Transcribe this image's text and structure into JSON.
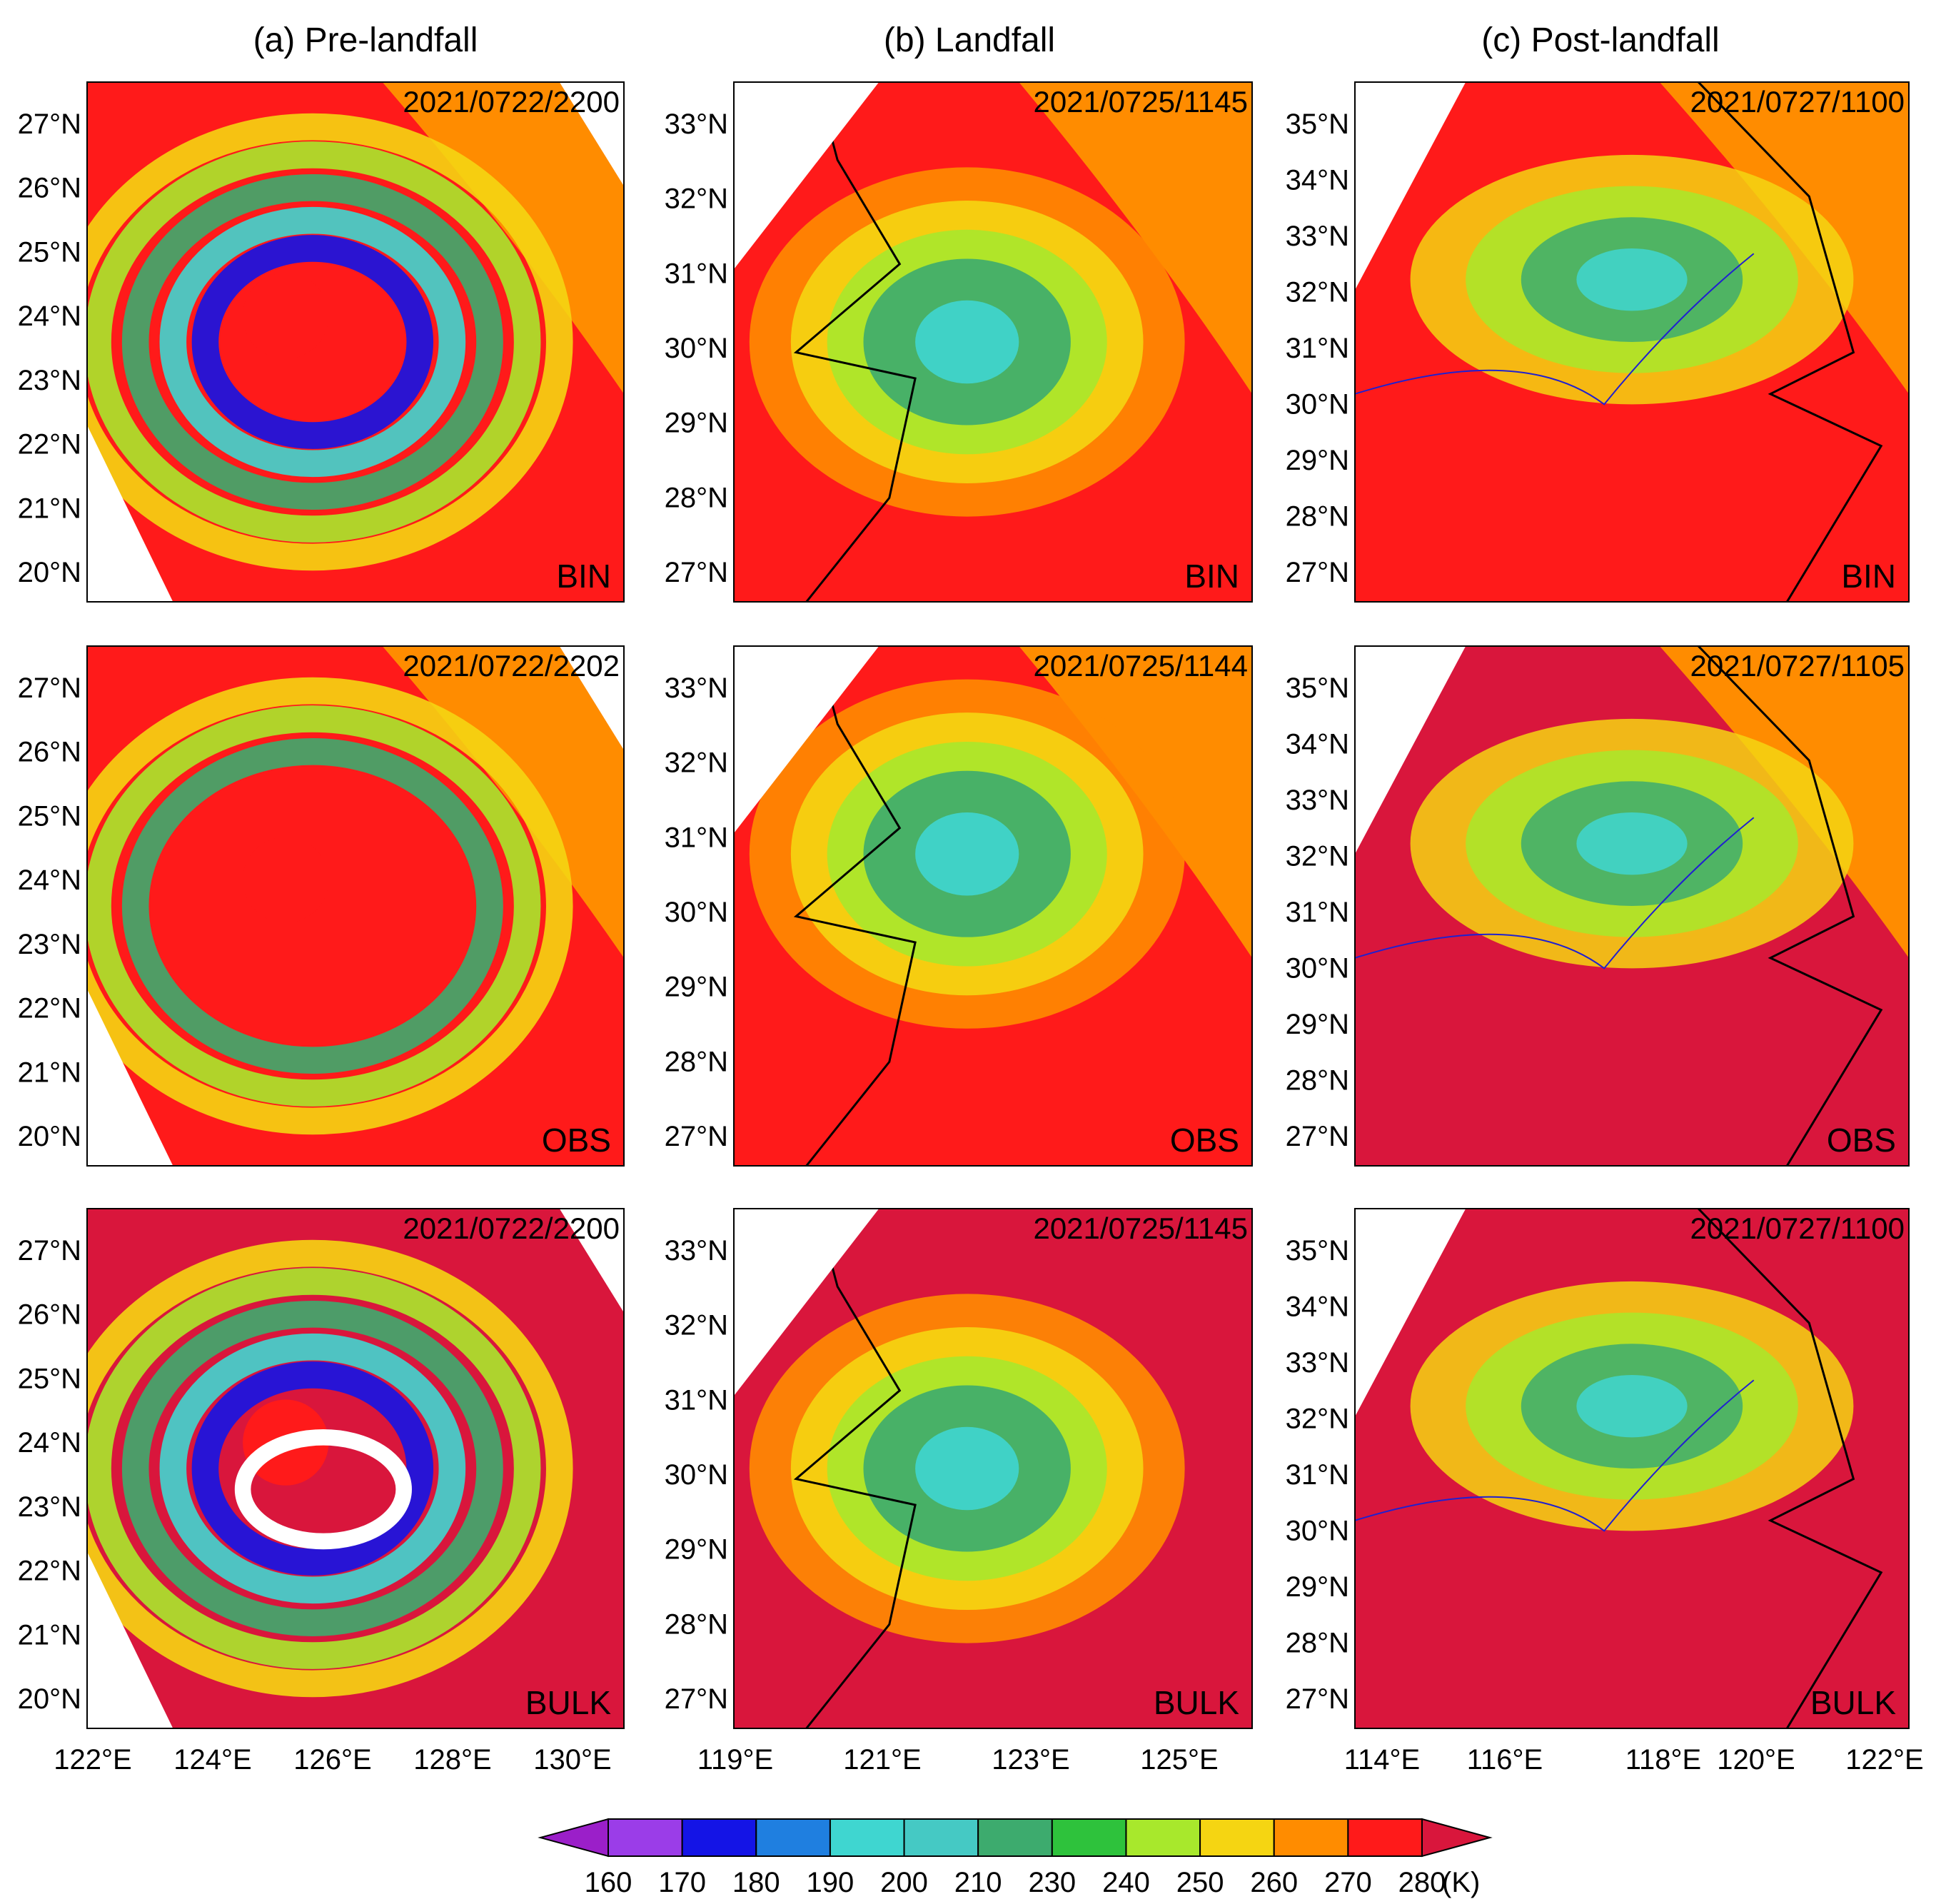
{
  "columns": [
    {
      "title": "(a) Pre-landfall",
      "lat_labels": [
        "27°N",
        "26°N",
        "25°N",
        "24°N",
        "23°N",
        "22°N",
        "21°N",
        "20°N"
      ],
      "lon_labels": [
        "122°E",
        "124°E",
        "126°E",
        "128°E",
        "130°E"
      ]
    },
    {
      "title": "(b) Landfall",
      "lat_labels": [
        "33°N",
        "32°N",
        "31°N",
        "30°N",
        "29°N",
        "28°N",
        "27°N"
      ],
      "lon_labels": [
        "119°E",
        "121°E",
        "123°E",
        "125°E"
      ]
    },
    {
      "title": "(c) Post-landfall",
      "lat_labels": [
        "35°N",
        "34°N",
        "33°N",
        "32°N",
        "31°N",
        "30°N",
        "29°N",
        "28°N",
        "27°N"
      ],
      "lon_labels": [
        "114°E",
        "116°E",
        "118°E",
        "120°E",
        "122°E"
      ]
    }
  ],
  "panels": [
    {
      "col": 0,
      "row": 0,
      "time": "2021/0722/2200",
      "label": "BIN"
    },
    {
      "col": 1,
      "row": 0,
      "time": "2021/0725/1145",
      "label": "BIN"
    },
    {
      "col": 2,
      "row": 0,
      "time": "2021/0727/1100",
      "label": "BIN"
    },
    {
      "col": 0,
      "row": 1,
      "time": "2021/0722/2202",
      "label": "OBS"
    },
    {
      "col": 1,
      "row": 1,
      "time": "2021/0725/1144",
      "label": "OBS"
    },
    {
      "col": 2,
      "row": 1,
      "time": "2021/0727/1105",
      "label": "OBS"
    },
    {
      "col": 0,
      "row": 2,
      "time": "2021/0722/2200",
      "label": "BULK"
    },
    {
      "col": 1,
      "row": 2,
      "time": "2021/0725/1145",
      "label": "BULK"
    },
    {
      "col": 2,
      "row": 2,
      "time": "2021/0727/1100",
      "label": "BULK"
    }
  ],
  "colorbar": {
    "levels": [
      "160",
      "170",
      "180",
      "190",
      "200",
      "210",
      "230",
      "240",
      "250",
      "260",
      "270",
      "280"
    ],
    "unit": "(K)",
    "colors": [
      "#9b1fc9",
      "#9b3de8",
      "#1414e6",
      "#1f7fe0",
      "#3fd6d0",
      "#45c9c4",
      "#3dab6e",
      "#2ec23c",
      "#a8e82c",
      "#f5d512",
      "#ff8c00",
      "#ff1a1a",
      "#d9163c"
    ]
  }
}
